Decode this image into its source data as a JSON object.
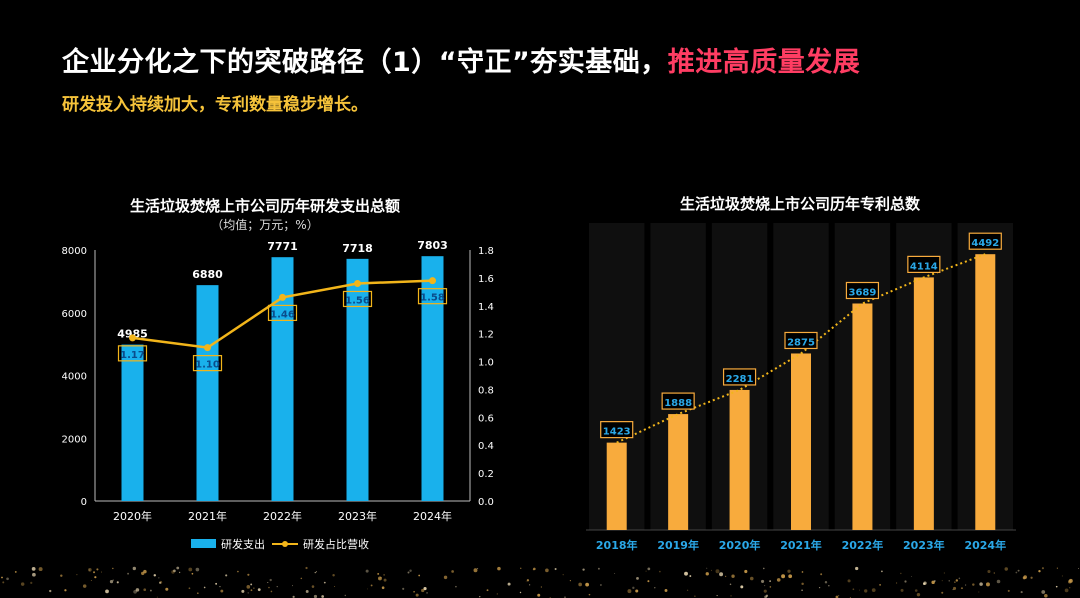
{
  "header": {
    "title_part1": "企业分化之下的突破路径（1）“守正”夯实基础，",
    "title_part2": "推进高质量发展",
    "subtitle": "研发投入持续加大，专利数量稳步增长。"
  },
  "colors": {
    "bar_blue": "#19b1ec",
    "line_gold": "#f2b51a",
    "bar_orange": "#f8ab3d",
    "title_accent": "#ff3d63",
    "subtitle": "#f6c33a",
    "label_blue": "#2aa8e8"
  },
  "chart_data": [
    {
      "type": "bar",
      "title": "生活垃圾焚烧上市公司历年研发支出总额",
      "subtitle": "（均值；万元；%）",
      "categories": [
        "2020年",
        "2021年",
        "2022年",
        "2023年",
        "2024年"
      ],
      "series": [
        {
          "name": "研发支出",
          "type": "bar",
          "axis": "left",
          "values": [
            4985,
            6880,
            7771,
            7718,
            7803
          ],
          "labels": [
            "4985",
            "6880",
            "7771",
            "7718",
            "7803"
          ]
        },
        {
          "name": "研发占比营收",
          "type": "line",
          "axis": "right",
          "values": [
            1.17,
            1.1,
            1.46,
            1.56,
            1.58
          ],
          "labels": [
            "1.17",
            "1.10",
            "1.46",
            "1.56",
            "1.58"
          ]
        }
      ],
      "y_left": {
        "min": 0,
        "max": 8000,
        "ticks": [
          "0",
          "2000",
          "4000",
          "6000",
          "8000"
        ]
      },
      "y_right": {
        "min": 0,
        "max": 1.8,
        "ticks": [
          "0.0",
          "0.2",
          "0.4",
          "0.6",
          "0.8",
          "1.0",
          "1.2",
          "1.4",
          "1.6",
          "1.8"
        ]
      },
      "legend": [
        "研发支出",
        "研发占比营收"
      ],
      "legend_position": "bottom"
    },
    {
      "type": "bar",
      "title": "生活垃圾焚烧上市公司历年专利总数",
      "categories": [
        "2018年",
        "2019年",
        "2020年",
        "2021年",
        "2022年",
        "2023年",
        "2024年"
      ],
      "values": [
        1423,
        1888,
        2281,
        2875,
        3689,
        4114,
        4492
      ],
      "labels": [
        "1423",
        "1888",
        "2281",
        "2875",
        "3689",
        "4114",
        "4492"
      ],
      "ylim": [
        0,
        5000
      ],
      "trendline": "dotted"
    }
  ]
}
